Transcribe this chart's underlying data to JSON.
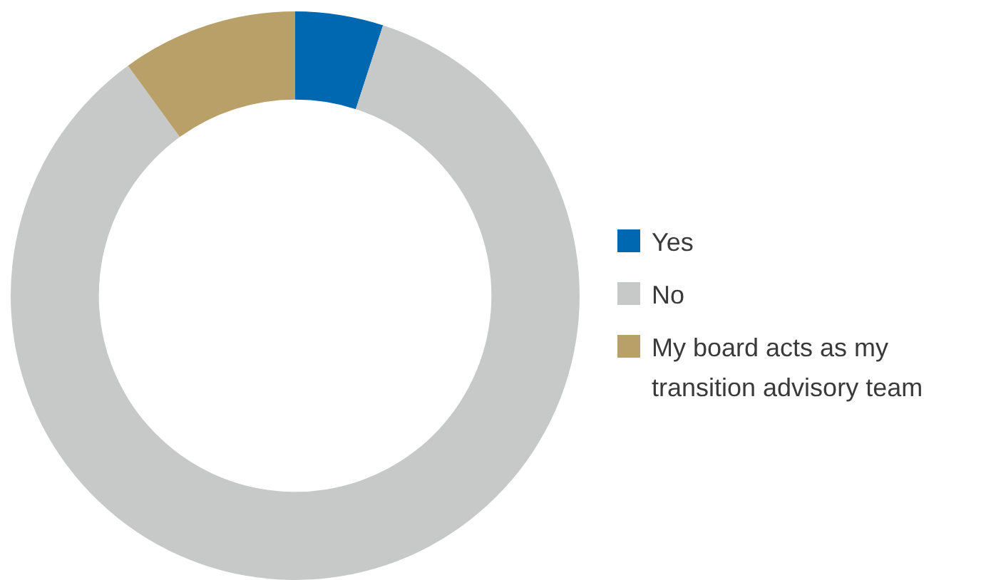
{
  "chart_data": {
    "type": "donut",
    "categories": [
      "Yes",
      "No",
      "My board acts as my transition advisory team"
    ],
    "values": [
      5,
      85,
      10
    ],
    "colors": [
      "#0067b1",
      "#c7c9c9",
      "#b8a068"
    ],
    "legend": "right"
  }
}
